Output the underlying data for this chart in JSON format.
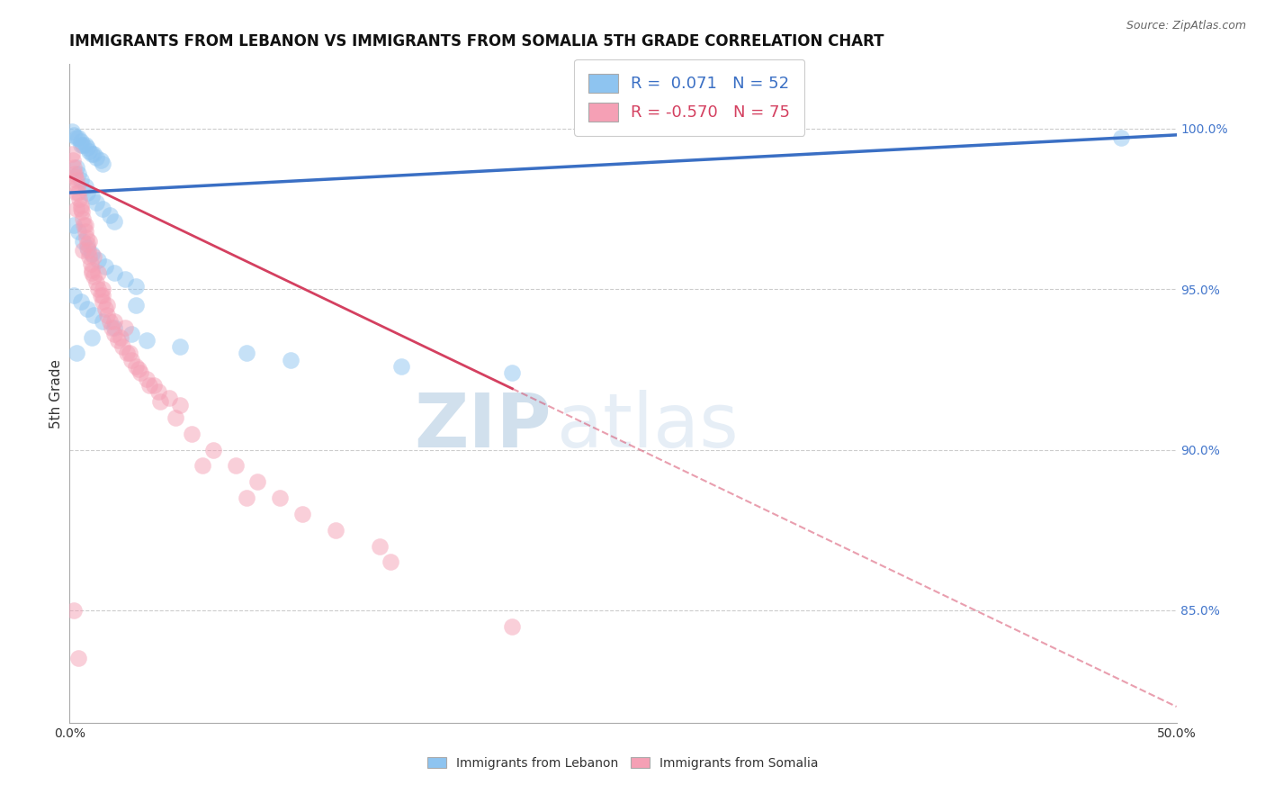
{
  "title": "IMMIGRANTS FROM LEBANON VS IMMIGRANTS FROM SOMALIA 5TH GRADE CORRELATION CHART",
  "source": "Source: ZipAtlas.com",
  "ylabel": "5th Grade",
  "xmin": 0.0,
  "xmax": 50.0,
  "ymin": 81.5,
  "ymax": 102.0,
  "R_lebanon": 0.071,
  "N_lebanon": 52,
  "R_somalia": -0.57,
  "N_somalia": 75,
  "color_lebanon": "#8EC4F0",
  "color_somalia": "#F5A0B5",
  "line_color_lebanon": "#3A6FC4",
  "line_color_somalia": "#D44060",
  "watermark_zip": "ZIP",
  "watermark_atlas": "atlas",
  "scatter_lebanon": [
    [
      0.1,
      99.9
    ],
    [
      0.2,
      99.8
    ],
    [
      0.3,
      99.7
    ],
    [
      0.4,
      99.7
    ],
    [
      0.5,
      99.6
    ],
    [
      0.5,
      99.5
    ],
    [
      0.6,
      99.5
    ],
    [
      0.7,
      99.5
    ],
    [
      0.8,
      99.4
    ],
    [
      0.9,
      99.3
    ],
    [
      1.0,
      99.2
    ],
    [
      1.1,
      99.2
    ],
    [
      1.2,
      99.1
    ],
    [
      1.4,
      99.0
    ],
    [
      1.5,
      98.9
    ],
    [
      0.3,
      98.8
    ],
    [
      0.4,
      98.6
    ],
    [
      0.5,
      98.4
    ],
    [
      0.7,
      98.2
    ],
    [
      0.8,
      98.0
    ],
    [
      1.0,
      97.9
    ],
    [
      1.2,
      97.7
    ],
    [
      1.5,
      97.5
    ],
    [
      1.8,
      97.3
    ],
    [
      2.0,
      97.1
    ],
    [
      0.2,
      97.0
    ],
    [
      0.4,
      96.8
    ],
    [
      0.6,
      96.5
    ],
    [
      0.8,
      96.3
    ],
    [
      1.0,
      96.1
    ],
    [
      1.3,
      95.9
    ],
    [
      1.6,
      95.7
    ],
    [
      2.0,
      95.5
    ],
    [
      2.5,
      95.3
    ],
    [
      3.0,
      95.1
    ],
    [
      0.2,
      94.8
    ],
    [
      0.5,
      94.6
    ],
    [
      0.8,
      94.4
    ],
    [
      1.1,
      94.2
    ],
    [
      1.5,
      94.0
    ],
    [
      2.0,
      93.8
    ],
    [
      2.8,
      93.6
    ],
    [
      3.5,
      93.4
    ],
    [
      5.0,
      93.2
    ],
    [
      8.0,
      93.0
    ],
    [
      10.0,
      92.8
    ],
    [
      15.0,
      92.6
    ],
    [
      20.0,
      92.4
    ],
    [
      0.3,
      93.0
    ],
    [
      1.0,
      93.5
    ],
    [
      47.5,
      99.7
    ],
    [
      3.0,
      94.5
    ]
  ],
  "scatter_somalia": [
    [
      0.1,
      99.2
    ],
    [
      0.15,
      99.0
    ],
    [
      0.2,
      98.8
    ],
    [
      0.25,
      98.6
    ],
    [
      0.3,
      98.4
    ],
    [
      0.35,
      98.2
    ],
    [
      0.4,
      98.0
    ],
    [
      0.45,
      97.8
    ],
    [
      0.5,
      97.6
    ],
    [
      0.55,
      97.4
    ],
    [
      0.6,
      97.2
    ],
    [
      0.65,
      97.0
    ],
    [
      0.7,
      96.8
    ],
    [
      0.75,
      96.6
    ],
    [
      0.8,
      96.4
    ],
    [
      0.85,
      96.2
    ],
    [
      0.9,
      96.0
    ],
    [
      0.95,
      95.8
    ],
    [
      1.0,
      95.6
    ],
    [
      1.1,
      95.4
    ],
    [
      1.2,
      95.2
    ],
    [
      1.3,
      95.0
    ],
    [
      1.4,
      94.8
    ],
    [
      1.5,
      94.6
    ],
    [
      1.6,
      94.4
    ],
    [
      1.7,
      94.2
    ],
    [
      1.8,
      94.0
    ],
    [
      1.9,
      93.8
    ],
    [
      2.0,
      93.6
    ],
    [
      2.2,
      93.4
    ],
    [
      2.4,
      93.2
    ],
    [
      2.6,
      93.0
    ],
    [
      2.8,
      92.8
    ],
    [
      3.0,
      92.6
    ],
    [
      3.2,
      92.4
    ],
    [
      3.5,
      92.2
    ],
    [
      3.8,
      92.0
    ],
    [
      4.0,
      91.8
    ],
    [
      4.5,
      91.6
    ],
    [
      5.0,
      91.4
    ],
    [
      0.3,
      98.0
    ],
    [
      0.5,
      97.5
    ],
    [
      0.7,
      97.0
    ],
    [
      0.9,
      96.5
    ],
    [
      1.1,
      96.0
    ],
    [
      1.3,
      95.5
    ],
    [
      1.5,
      95.0
    ],
    [
      1.7,
      94.5
    ],
    [
      2.0,
      94.0
    ],
    [
      2.3,
      93.5
    ],
    [
      2.7,
      93.0
    ],
    [
      3.1,
      92.5
    ],
    [
      3.6,
      92.0
    ],
    [
      4.1,
      91.5
    ],
    [
      4.8,
      91.0
    ],
    [
      5.5,
      90.5
    ],
    [
      6.5,
      90.0
    ],
    [
      7.5,
      89.5
    ],
    [
      8.5,
      89.0
    ],
    [
      9.5,
      88.5
    ],
    [
      10.5,
      88.0
    ],
    [
      12.0,
      87.5
    ],
    [
      14.0,
      87.0
    ],
    [
      0.2,
      85.0
    ],
    [
      0.4,
      83.5
    ],
    [
      6.0,
      89.5
    ],
    [
      8.0,
      88.5
    ],
    [
      0.3,
      97.5
    ],
    [
      0.6,
      96.2
    ],
    [
      1.0,
      95.5
    ],
    [
      1.5,
      94.8
    ],
    [
      2.5,
      93.8
    ],
    [
      20.0,
      84.5
    ],
    [
      14.5,
      86.5
    ],
    [
      0.25,
      98.5
    ]
  ],
  "line_leb_y0": 98.0,
  "line_leb_y1": 99.8,
  "line_som_y0": 98.5,
  "line_som_y1": 82.0,
  "line_som_solid_xmax": 20.0
}
